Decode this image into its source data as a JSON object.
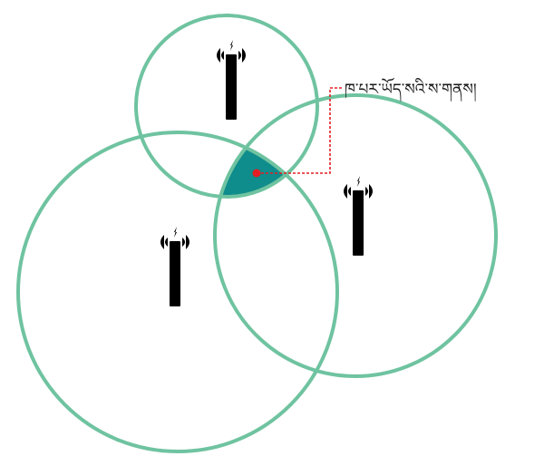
{
  "diagram": {
    "callout_label": "ཁ་པར་ཡོད་སའི་ས་གནས།",
    "colors": {
      "circle_stroke": "#6fc3a0",
      "intersection_fill": "#0f8c8c",
      "marker": "#e31e24",
      "leader_line": "#e31e24",
      "tower": "#222222"
    },
    "towers": [
      {
        "name": "tower-top",
        "icon": "cell-tower-icon"
      },
      {
        "name": "tower-left",
        "icon": "cell-tower-icon"
      },
      {
        "name": "tower-right",
        "icon": "cell-tower-icon"
      }
    ],
    "coverage_areas": [
      {
        "name": "coverage-circle-top"
      },
      {
        "name": "coverage-circle-left"
      },
      {
        "name": "coverage-circle-right"
      }
    ],
    "location_marker": {
      "icon": "location-dot-icon"
    }
  }
}
